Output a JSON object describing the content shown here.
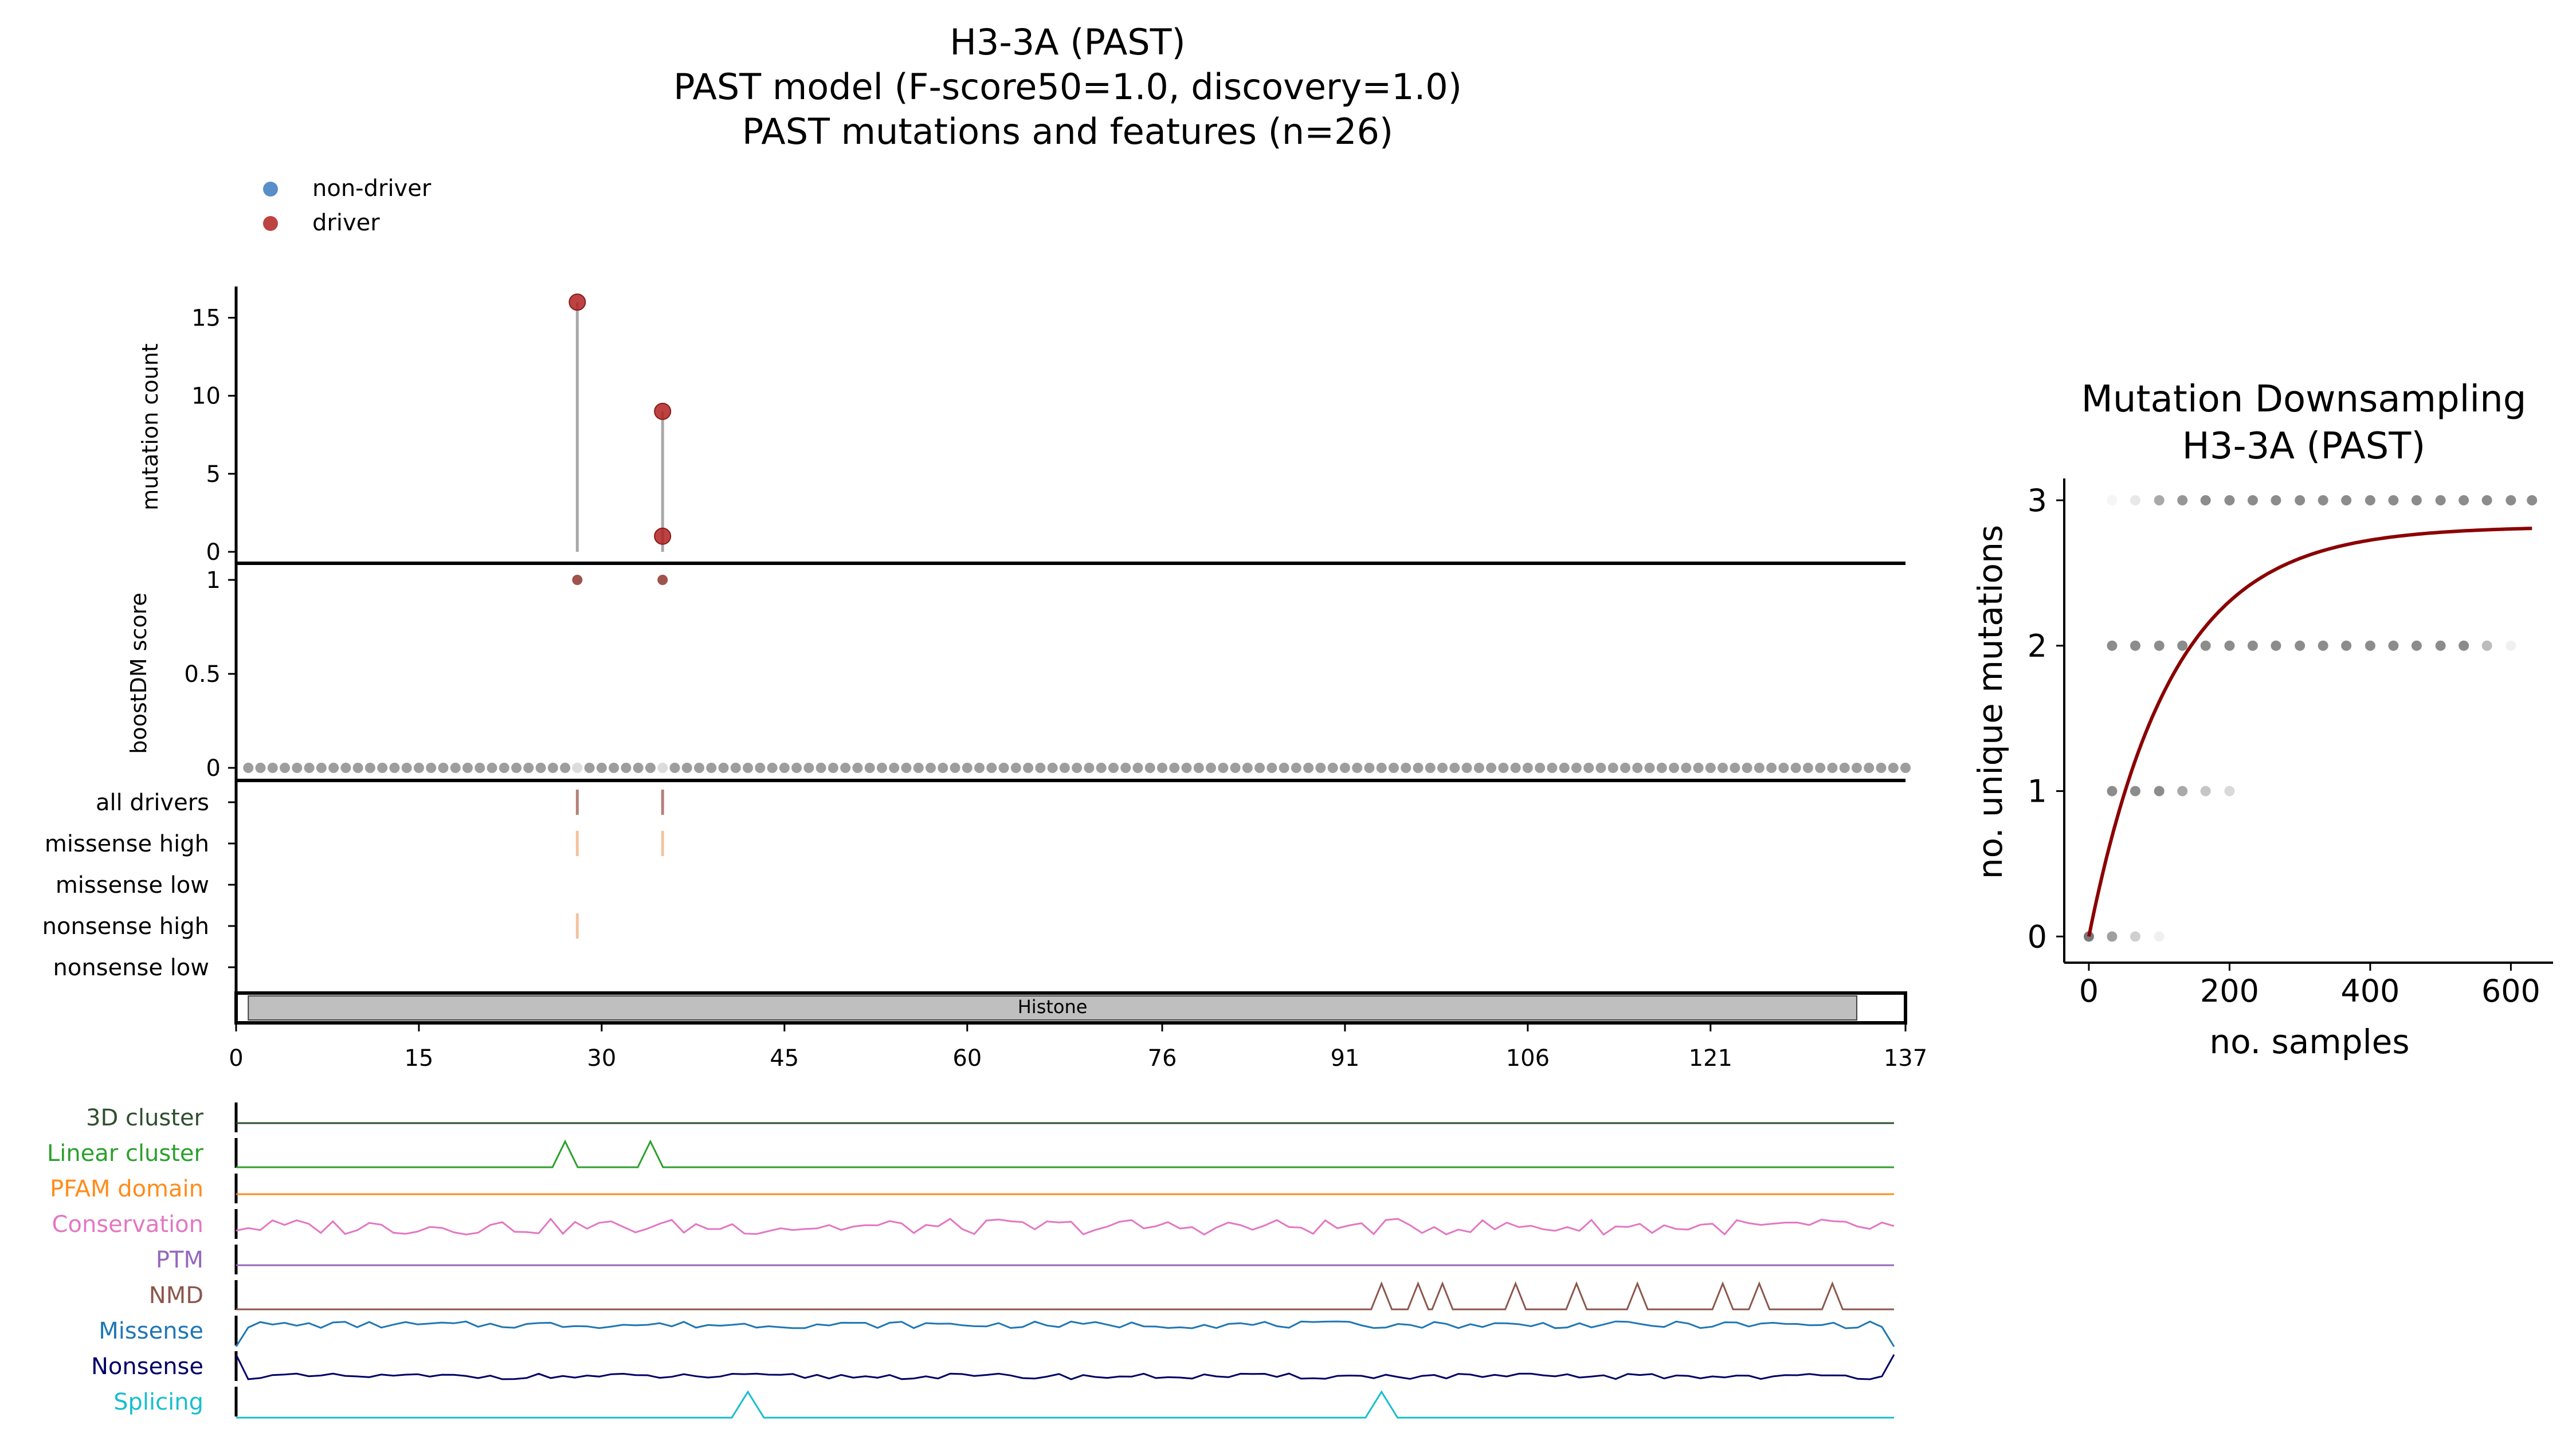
{
  "title_lines": [
    "H3-3A (PAST)",
    "PAST model (F-score50=1.0, discovery=1.0)",
    "PAST mutations and features (n=26)"
  ],
  "legend": [
    {
      "label": "non-driver",
      "color": "#3b7bbf"
    },
    {
      "label": "driver",
      "color": "#b22222"
    }
  ],
  "domain_label": "Histone",
  "chart_data": [
    {
      "type": "scatter",
      "name": "mutation count lollipop",
      "ylabel": "mutation count",
      "ylim": [
        0,
        17
      ],
      "yticks": [
        "15",
        "10",
        "5",
        "0"
      ],
      "ytick_values": [
        15,
        10,
        5,
        0
      ],
      "points": [
        {
          "pos": 28,
          "count": 16,
          "class": "driver"
        },
        {
          "pos": 35,
          "count": 9,
          "class": "driver"
        },
        {
          "pos": 35,
          "count": 1,
          "class": "driver"
        }
      ]
    },
    {
      "type": "scatter",
      "name": "boostDM score",
      "ylabel": "boostDM score",
      "ylim": [
        0,
        1
      ],
      "yticks": [
        "1",
        "0.5",
        "0"
      ],
      "ytick_values": [
        1,
        0.5,
        0
      ],
      "positions_range": [
        1,
        137
      ],
      "driver_positions": [
        28,
        35
      ],
      "driver_score": 1,
      "other_score": 0
    },
    {
      "type": "table",
      "name": "driver track rows",
      "rows": [
        "all drivers",
        "missense high",
        "missense low",
        "nonsense high",
        "nonsense low"
      ],
      "marks": [
        {
          "row": 0,
          "pos": 28,
          "color": "#b5807a"
        },
        {
          "row": 0,
          "pos": 35,
          "color": "#b5807a"
        },
        {
          "row": 1,
          "pos": 28,
          "color": "#f2c4a0"
        },
        {
          "row": 1,
          "pos": 35,
          "color": "#f2c4a0"
        },
        {
          "row": 3,
          "pos": 28,
          "color": "#f2c4a0"
        }
      ]
    },
    {
      "type": "line",
      "name": "protein position axis",
      "xlim": [
        0,
        137
      ],
      "xticks": [
        "0",
        "15",
        "30",
        "45",
        "60",
        "76",
        "91",
        "106",
        "121",
        "137"
      ],
      "xtick_values": [
        0,
        15,
        30,
        45,
        60,
        76,
        91,
        106,
        121,
        137
      ],
      "domains": [
        {
          "name": "Histone",
          "start": 1,
          "end": 133
        }
      ]
    },
    {
      "type": "line",
      "name": "feature tracks",
      "tracks": [
        {
          "label": "3D cluster",
          "color": "#2f4f2f"
        },
        {
          "label": "Linear cluster",
          "color": "#2ca02c"
        },
        {
          "label": "PFAM domain",
          "color": "#ff8c1a"
        },
        {
          "label": "Conservation",
          "color": "#e377c2"
        },
        {
          "label": "PTM",
          "color": "#9467bd"
        },
        {
          "label": "NMD",
          "color": "#8c564b"
        },
        {
          "label": "Missense",
          "color": "#1f77b4"
        },
        {
          "label": "Nonsense",
          "color": "#000066"
        },
        {
          "label": "Splicing",
          "color": "#17becf"
        }
      ],
      "linear_cluster_peaks": [
        27,
        34
      ],
      "nmd_peaks": [
        94,
        97,
        99,
        105,
        110,
        115,
        122,
        125,
        131
      ],
      "splicing_peaks": [
        42,
        94
      ]
    },
    {
      "type": "scatter",
      "title": "Mutation Downsampling",
      "subtitle": "H3-3A (PAST)",
      "xlabel": "no. samples",
      "ylabel": "no. unique mutations",
      "xlim": [
        -35,
        660
      ],
      "ylim": [
        -0.18,
        3.15
      ],
      "xticks": [
        "0",
        "200",
        "400",
        "600"
      ],
      "xtick_values": [
        0,
        200,
        400,
        600
      ],
      "yticks": [
        "0",
        "1",
        "2",
        "3"
      ],
      "ytick_values": [
        0,
        1,
        2,
        3
      ],
      "curve": {
        "color": "#8b0000",
        "asymptote": 2.82,
        "rate": 0.0085
      },
      "rows": [
        {
          "y": 3,
          "x": [
            33,
            66,
            100,
            133,
            166,
            200,
            233,
            266,
            300,
            333,
            366,
            400,
            433,
            466,
            500,
            533,
            566,
            600,
            630
          ],
          "alpha": [
            0.05,
            0.12,
            0.45,
            0.55,
            0.6,
            0.6,
            0.6,
            0.6,
            0.6,
            0.6,
            0.6,
            0.6,
            0.6,
            0.6,
            0.6,
            0.6,
            0.6,
            0.6,
            0.6
          ]
        },
        {
          "y": 2,
          "x": [
            33,
            66,
            100,
            133,
            166,
            200,
            233,
            266,
            300,
            333,
            366,
            400,
            433,
            466,
            500,
            533,
            566,
            600
          ],
          "alpha": [
            0.6,
            0.6,
            0.6,
            0.6,
            0.6,
            0.6,
            0.6,
            0.6,
            0.6,
            0.6,
            0.6,
            0.6,
            0.6,
            0.6,
            0.6,
            0.6,
            0.35,
            0.08
          ]
        },
        {
          "y": 1,
          "x": [
            33,
            66,
            100,
            133,
            166,
            200
          ],
          "alpha": [
            0.6,
            0.6,
            0.6,
            0.45,
            0.3,
            0.2
          ]
        },
        {
          "y": 0,
          "x": [
            0,
            33,
            66,
            100
          ],
          "alpha": [
            0.7,
            0.5,
            0.25,
            0.08
          ]
        }
      ]
    }
  ]
}
